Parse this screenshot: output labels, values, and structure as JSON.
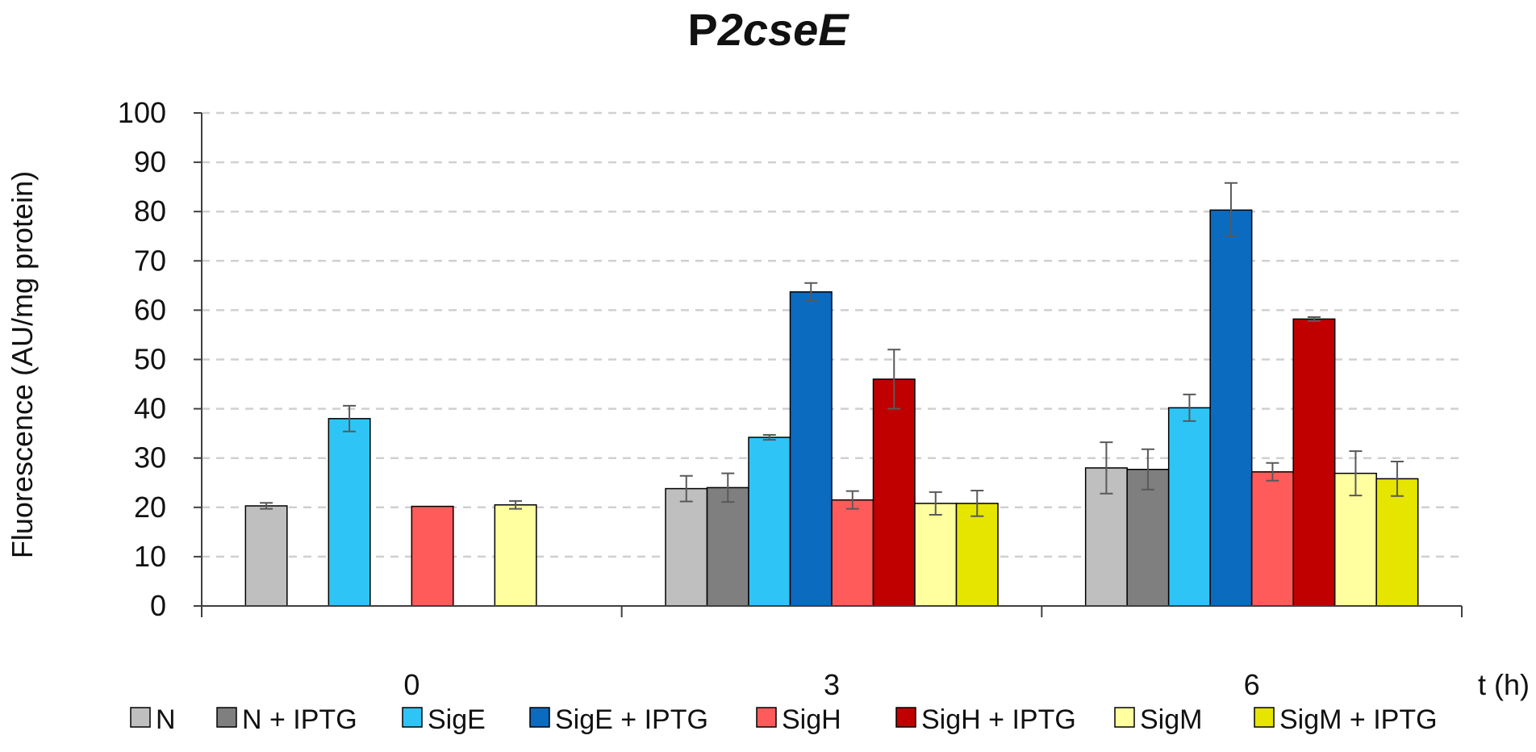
{
  "chart_data": {
    "type": "bar",
    "title": "P2cseE",
    "title_parts": [
      {
        "text": "P",
        "italic": false
      },
      {
        "text": "2cseE",
        "italic": true
      }
    ],
    "xlabel": "t (h)",
    "ylabel": "Fluorescence (AU/mg protein)",
    "ylim": [
      0,
      100
    ],
    "yticks": [
      0,
      10,
      20,
      30,
      40,
      50,
      60,
      70,
      80,
      90,
      100
    ],
    "grid": true,
    "legend_position": "bottom",
    "categories": [
      "0",
      "3",
      "6"
    ],
    "series": [
      {
        "name": "N",
        "color": "#bfbfbf",
        "values": [
          20.3,
          23.8,
          28.0
        ],
        "errors": [
          0.6,
          2.6,
          5.2
        ]
      },
      {
        "name": "N + IPTG",
        "color": "#7f7f7f",
        "values": [
          null,
          24.0,
          27.7
        ],
        "errors": [
          null,
          2.9,
          4.1
        ]
      },
      {
        "name": "SigE",
        "color": "#2ec5f6",
        "values": [
          38.0,
          34.2,
          40.2
        ],
        "errors": [
          2.6,
          0.5,
          2.7
        ]
      },
      {
        "name": "SigE + IPTG",
        "color": "#0a6bbf",
        "values": [
          null,
          63.7,
          80.3
        ],
        "errors": [
          null,
          1.8,
          5.5
        ]
      },
      {
        "name": "SigH",
        "color": "#ff5b5b",
        "values": [
          20.2,
          21.5,
          27.2
        ],
        "errors": [
          0.0,
          1.8,
          1.8
        ]
      },
      {
        "name": "SigH + IPTG",
        "color": "#c00000",
        "values": [
          null,
          46.0,
          58.2
        ],
        "errors": [
          null,
          6.0,
          0.4
        ]
      },
      {
        "name": "SigM",
        "color": "#ffff9f",
        "values": [
          20.5,
          20.8,
          26.9
        ],
        "errors": [
          0.8,
          2.3,
          4.5
        ]
      },
      {
        "name": "SigM + IPTG",
        "color": "#e5e500",
        "values": [
          null,
          20.8,
          25.8
        ],
        "errors": [
          null,
          2.6,
          3.5
        ]
      }
    ]
  }
}
